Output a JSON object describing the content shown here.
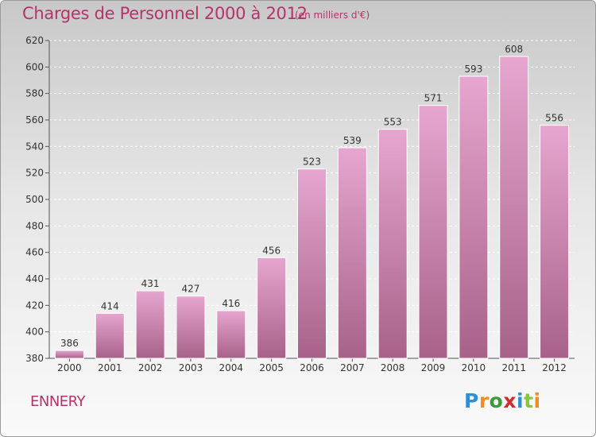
{
  "title": "Charges de Personnel 2000 à 2012",
  "subtitle": "(en milliers d'€)",
  "commune": "ENNERY",
  "logo": {
    "letters": [
      "P",
      "r",
      "o",
      "x",
      "i",
      "t",
      "i"
    ],
    "colors": [
      "#2f8fd1",
      "#f28c1b",
      "#3b9a3b",
      "#d62b2b",
      "#2f8fd1",
      "#8cc43c",
      "#f28c1b"
    ]
  },
  "colors": {
    "accent": "#b5336b",
    "bar_top": "#e6a6cf",
    "bar_bottom": "#a86289"
  },
  "chart_data": {
    "type": "bar",
    "categories": [
      "2000",
      "2001",
      "2002",
      "2003",
      "2004",
      "2005",
      "2006",
      "2007",
      "2008",
      "2009",
      "2010",
      "2011",
      "2012"
    ],
    "values": [
      386,
      414,
      431,
      427,
      416,
      456,
      523,
      539,
      553,
      571,
      593,
      608,
      556
    ],
    "ylim": [
      380,
      620
    ],
    "yticks": [
      380,
      400,
      420,
      440,
      460,
      480,
      500,
      520,
      540,
      560,
      580,
      600,
      620
    ],
    "grid": true,
    "data_labels": true,
    "legend": false
  }
}
